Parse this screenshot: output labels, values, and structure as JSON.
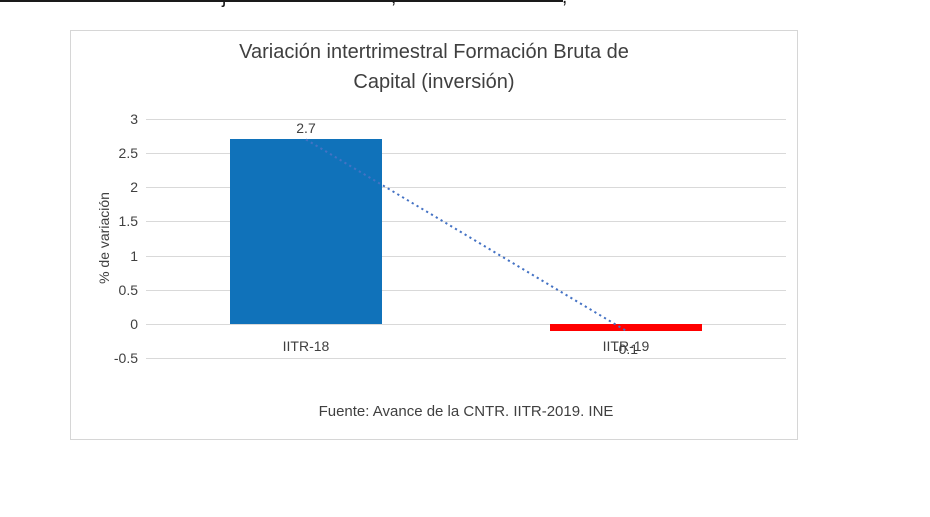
{
  "page": {
    "top_fragments": [
      "j",
      ",",
      ","
    ]
  },
  "chart_data": {
    "type": "bar",
    "title": "Variación intertrimestral Formación Bruta de Capital (inversión)",
    "title_lines": [
      "Variación intertrimestral Formación Bruta de",
      "Capital (inversión)"
    ],
    "categories": [
      "IITR-18",
      "IITR-19"
    ],
    "values": [
      2.7,
      -0.1
    ],
    "data_labels": [
      "2.7",
      "-0.1"
    ],
    "bar_colors": [
      "#1072BA",
      "#FF0000"
    ],
    "trendline": {
      "style": "dotted",
      "color": "#4472C4"
    },
    "ylabel": "% de variación",
    "xlabel": "",
    "ylim": [
      -0.5,
      3
    ],
    "yticks": [
      3,
      2.5,
      2,
      1.5,
      1,
      0.5,
      0,
      -0.5
    ],
    "grid": true,
    "legend": "none",
    "source_note": "Fuente: Avance de la CNTR. IITR-2019. INE",
    "colors": {
      "gridline": "#D9D9D9",
      "axis_text": "#404040",
      "chart_border": "#D6D6D6"
    }
  }
}
